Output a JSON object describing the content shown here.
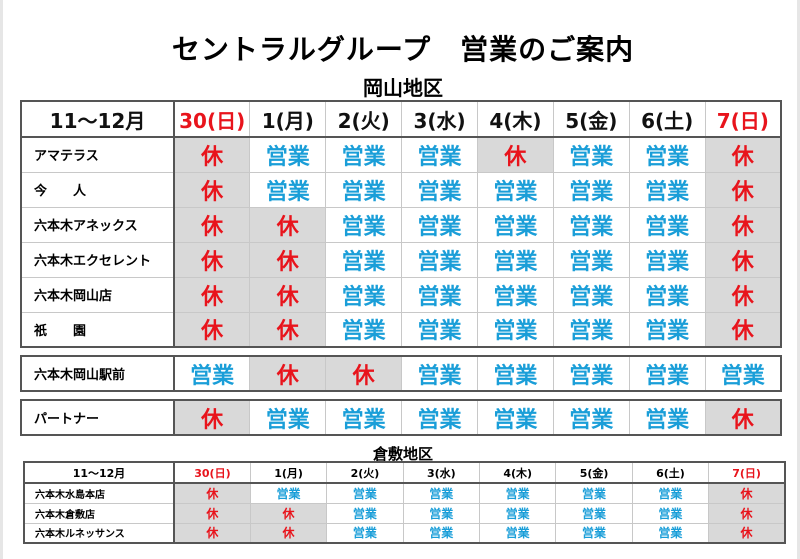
{
  "title": "セントラルグループ　営業のご案内",
  "colors": {
    "open": "#1a9ed8",
    "closed": "#e8141c",
    "closed_bg": "#d9d9d9"
  },
  "okayama": {
    "area": "岡山地区",
    "period": "11～12月",
    "days": [
      {
        "label": "30(日)",
        "holiday": true
      },
      {
        "label": "1(月)"
      },
      {
        "label": "2(火)"
      },
      {
        "label": "3(水)"
      },
      {
        "label": "4(木)"
      },
      {
        "label": "5(金)"
      },
      {
        "label": "6(土)"
      },
      {
        "label": "7(日)",
        "holiday": true
      }
    ],
    "groups": [
      [
        {
          "name": "アマテラス",
          "status": [
            "休",
            "営業",
            "営業",
            "営業",
            "休",
            "営業",
            "営業",
            "休"
          ]
        },
        {
          "name": "今　　人",
          "status": [
            "休",
            "営業",
            "営業",
            "営業",
            "営業",
            "営業",
            "営業",
            "休"
          ]
        },
        {
          "name": "六本木アネックス",
          "status": [
            "休",
            "休",
            "営業",
            "営業",
            "営業",
            "営業",
            "営業",
            "休"
          ]
        },
        {
          "name": "六本木エクセレント",
          "status": [
            "休",
            "休",
            "営業",
            "営業",
            "営業",
            "営業",
            "営業",
            "休"
          ]
        },
        {
          "name": "六本木岡山店",
          "status": [
            "休",
            "休",
            "営業",
            "営業",
            "営業",
            "営業",
            "営業",
            "休"
          ]
        },
        {
          "name": "祇　　園",
          "status": [
            "休",
            "休",
            "営業",
            "営業",
            "営業",
            "営業",
            "営業",
            "休"
          ]
        }
      ],
      [
        {
          "name": "六本木岡山駅前",
          "status": [
            "営業",
            "休",
            "休",
            "営業",
            "営業",
            "営業",
            "営業",
            "営業"
          ]
        }
      ],
      [
        {
          "name": "パートナー",
          "status": [
            "休",
            "営業",
            "営業",
            "営業",
            "営業",
            "営業",
            "営業",
            "休"
          ]
        }
      ]
    ]
  },
  "kurashiki": {
    "area": "倉敷地区",
    "period": "11～12月",
    "days": [
      {
        "label": "30(日)",
        "holiday": true
      },
      {
        "label": "1(月)"
      },
      {
        "label": "2(火)"
      },
      {
        "label": "3(水)"
      },
      {
        "label": "4(木)"
      },
      {
        "label": "5(金)"
      },
      {
        "label": "6(土)"
      },
      {
        "label": "7(日)",
        "holiday": true
      }
    ],
    "rows": [
      {
        "name": "六本木水島本店",
        "status": [
          "休",
          "営業",
          "営業",
          "営業",
          "営業",
          "営業",
          "営業",
          "休"
        ]
      },
      {
        "name": "六本木倉敷店",
        "status": [
          "休",
          "休",
          "営業",
          "営業",
          "営業",
          "営業",
          "営業",
          "休"
        ]
      },
      {
        "name": "六本木ルネッサンス",
        "status": [
          "休",
          "休",
          "営業",
          "営業",
          "営業",
          "営業",
          "営業",
          "休"
        ]
      }
    ]
  }
}
